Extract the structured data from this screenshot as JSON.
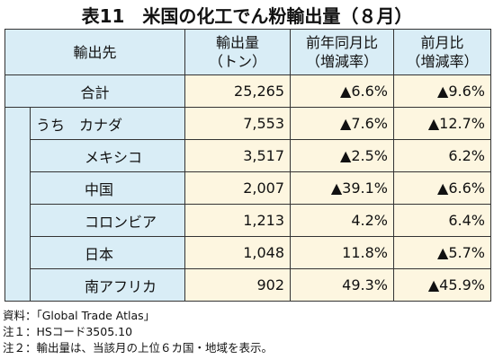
{
  "title": "表11　米国の化工でん粉輸出量（８月）",
  "table": {
    "header": [
      [
        "輸出先"
      ],
      [
        "輸出量",
        "（トン）"
      ],
      [
        "前年同月比",
        "（増減率）"
      ],
      [
        "前月比",
        "（増減率）"
      ]
    ],
    "rows": [
      [
        "合計",
        "25,265",
        "▲6.6%",
        "▲9.6%"
      ],
      [
        "うち　カナダ",
        "7,553",
        "▲7.6%",
        "▲12.7%"
      ],
      [
        "メキシコ",
        "3,517",
        "▲2.5%",
        "6.2%"
      ],
      [
        "中国",
        "2,007",
        "▲39.1%",
        "▲6.6%"
      ],
      [
        "コロンビア",
        "1,213",
        "4.2%",
        "6.4%"
      ],
      [
        "日本",
        "1,048",
        "11.8%",
        "▲5.7%"
      ],
      [
        "南アフリカ",
        "902",
        "49.3%",
        "▲45.9%"
      ]
    ]
  },
  "notes": [
    "資料：「Global Trade Atlas」",
    "注１：HSコード3505.10",
    "注２：輸出量は、当該月の上位６カ国・地域を表示。"
  ]
}
